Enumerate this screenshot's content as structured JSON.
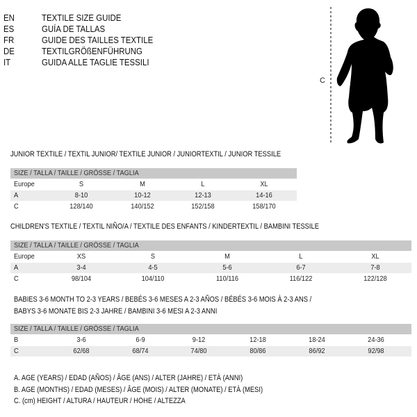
{
  "languages": [
    {
      "code": "EN",
      "text": "TEXTILE SIZE GUIDE"
    },
    {
      "code": "ES",
      "text": "GUÍA DE TALLAS"
    },
    {
      "code": "FR",
      "text": "GUIDE DES TAILLES TEXTILE"
    },
    {
      "code": "DE",
      "text": "TEXTILGRÖßENFÜHRUNG"
    },
    {
      "code": "IT",
      "text": "GUIDA ALLE TAGLIE TESSILI"
    }
  ],
  "figure": {
    "label": "C",
    "icon": "baby-silhouette"
  },
  "size_header": "SIZE / TALLA / TAILLE / GRÖSSE / TAGLIA",
  "junior": {
    "title": "JUNIOR TEXTILE / TEXTIL JUNIOR/ TEXTILE JUNIOR / JUNIORTEXTIL / JUNIOR TESSILE",
    "rows": [
      {
        "label": "Europe",
        "values": [
          "S",
          "M",
          "L",
          "XL"
        ]
      },
      {
        "label": "A",
        "values": [
          "8-10",
          "10-12",
          "12-13",
          "14-16"
        ]
      },
      {
        "label": "C",
        "values": [
          "128/140",
          "140/152",
          "152/158",
          "158/170"
        ]
      }
    ]
  },
  "children": {
    "title": "CHILDREN'S TEXTILE / TEXTIL NIÑO/A / TEXTILE DES ENFANTS / KINDERTEXTIL / BAMBINI TESSILE",
    "rows": [
      {
        "label": "Europe",
        "values": [
          "XS",
          "S",
          "M",
          "L",
          "XL"
        ]
      },
      {
        "label": "A",
        "values": [
          "3-4",
          "4-5",
          "5-6",
          "6-7",
          "7-8"
        ]
      },
      {
        "label": "C",
        "values": [
          "98/104",
          "104/110",
          "110/116",
          "116/122",
          "122/128"
        ]
      }
    ]
  },
  "babies": {
    "title_line1": "BABIES 3-6 MONTH TO 2-3 YEARS / BEBÉS 3-6 MESES A 2-3 AÑOS / BÉBÉS 3-6 MOIS À 2-3 ANS /",
    "title_line2": "BABYS 3-6 MONATE BIS 2-3 JAHRE / BAMBINI 3-6 MESI A 2-3 ANNI",
    "rows": [
      {
        "label": "B",
        "values": [
          "3-6",
          "6-9",
          "9-12",
          "12-18",
          "18-24",
          "24-36"
        ]
      },
      {
        "label": "C",
        "values": [
          "62/68",
          "68/74",
          "74/80",
          "80/86",
          "86/92",
          "92/98"
        ]
      }
    ]
  },
  "legend": [
    "A. AGE (YEARS) / EDAD (AÑOS) / ÂGE (ANS) / ALTER (JAHRE) / ETÀ (ANNI)",
    "B. AGE (MONTHS) / EDAD (MESES) / ÂGE (MOIS) / ALTER (MONATE) / ETÀ (MESI)",
    "C. (cm) HEIGHT / ALTURA / HAUTEUR / HÖHE / ALTEZZA"
  ]
}
